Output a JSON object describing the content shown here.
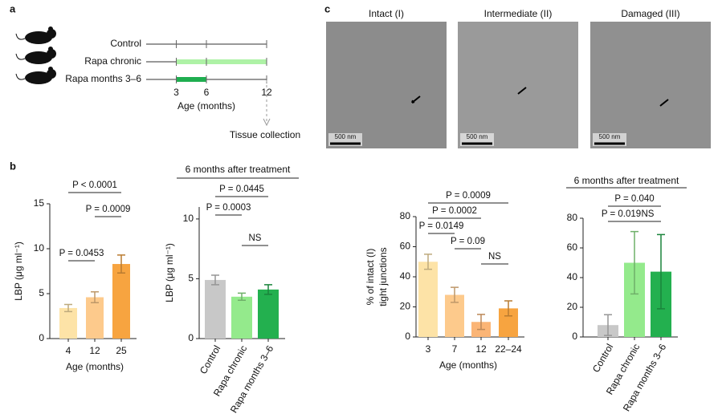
{
  "panel_labels": [
    "a",
    "b",
    "c"
  ],
  "timeline": {
    "rows": [
      {
        "label": "Control"
      },
      {
        "label": "Rapa chronic",
        "start": 3,
        "end": 12,
        "color": "#aef2a6"
      },
      {
        "label": "Rapa months 3–6",
        "start": 3,
        "end": 6,
        "color": "#1fae50"
      }
    ],
    "xlim": [
      0,
      12
    ],
    "xticks": [
      3,
      6,
      12
    ],
    "xlabel": "Age (months)",
    "endpoint": "Tissue collection"
  },
  "micrographs": [
    {
      "label": "Intact (I)",
      "scale_bar": "500 nm"
    },
    {
      "label": "Intermediate (II)",
      "scale_bar": "500 nm"
    },
    {
      "label": "Damaged (III)",
      "scale_bar": "500 nm"
    }
  ],
  "chart_data": [
    {
      "type": "bar",
      "ylabel": "LBP (μg ml⁻¹)",
      "xlabel": "Age (months)",
      "categories": [
        "4",
        "12",
        "25"
      ],
      "values": [
        3.4,
        4.6,
        8.3
      ],
      "errors": [
        0.4,
        0.6,
        1.0
      ],
      "colors": [
        "#fde3a7",
        "#fdca8c",
        "#f7a440"
      ],
      "ylim": [
        0,
        15
      ],
      "yticks": [
        0,
        5,
        10,
        15
      ],
      "annotations": [
        "P < 0.0001",
        "P = 0.0009",
        "P = 0.0453"
      ]
    },
    {
      "type": "bar",
      "title": "6 months after treatment",
      "ylabel": "LBP (μg ml⁻¹)",
      "categories": [
        "Control",
        "Rapa chronic",
        "Rapa months 3–6"
      ],
      "values": [
        4.9,
        3.5,
        4.1
      ],
      "errors": [
        0.4,
        0.3,
        0.4
      ],
      "colors": [
        "#c8c8c8",
        "#94ea8c",
        "#23b04f"
      ],
      "ylim": [
        0,
        11
      ],
      "yticks": [
        0,
        5,
        10
      ],
      "annotations": [
        "P = 0.0445",
        "P = 0.0003",
        "NS"
      ]
    },
    {
      "type": "bar",
      "ylabel": [
        "% of intact (I)",
        "tight junctions"
      ],
      "xlabel": "Age (months)",
      "categories": [
        "3",
        "7",
        "12",
        "22–24"
      ],
      "values": [
        50,
        28,
        10,
        19
      ],
      "errors": [
        5,
        5,
        5,
        5
      ],
      "colors": [
        "#fde3a7",
        "#fdca8c",
        "#fbb576",
        "#f7a440"
      ],
      "ylim": [
        0,
        80
      ],
      "yticks": [
        0,
        20,
        40,
        60,
        80
      ],
      "annotations": [
        "P = 0.0009",
        "P = 0.0002",
        "P = 0.0149",
        "P = 0.09",
        "NS"
      ]
    },
    {
      "type": "bar",
      "title": "6 months after treatment",
      "categories": [
        "Control",
        "Rapa chronic",
        "Rapa months 3–6"
      ],
      "values": [
        8,
        50,
        44
      ],
      "errors": [
        7,
        21,
        25
      ],
      "colors": [
        "#c8c8c8",
        "#94ea8c",
        "#23b04f"
      ],
      "ylim": [
        0,
        80
      ],
      "yticks": [
        0,
        20,
        40,
        60,
        80
      ],
      "annotations": [
        "P = 0.040",
        "P = 0.019",
        "NS"
      ]
    }
  ]
}
